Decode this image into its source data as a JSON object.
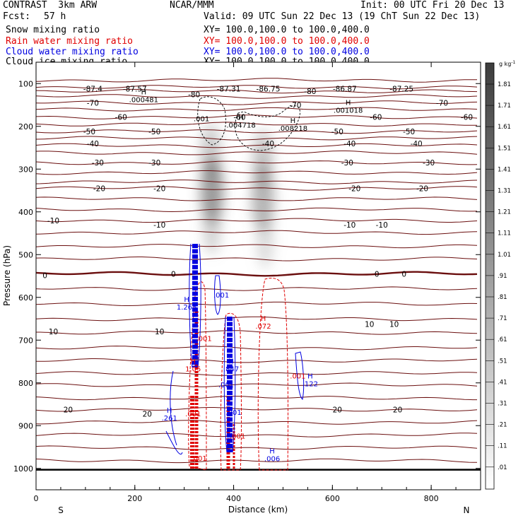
{
  "header": {
    "model": "CONTRAST  3km ARW",
    "org": "NCAR/MMM",
    "init": "Init: 00 UTC Fri 20 Dec 13",
    "fcst_label": "Fcst:",
    "fcst_value": "57 h",
    "valid": "Valid: 09 UTC Sun 22 Dec 13 (19 ChT Sun 22 Dec 13)"
  },
  "legend": [
    {
      "name": "Snow mixing ratio",
      "xy": "XY= 100.0,100.0 to 100.0,400.0",
      "color": "#000000"
    },
    {
      "name": "Rain water mixing ratio",
      "xy": "XY= 100.0,100.0 to 100.0,400.0",
      "color": "#e00000"
    },
    {
      "name": "Cloud water mixing ratio",
      "xy": "XY= 100.0,100.0 to 100.0,400.0",
      "color": "#0000e0"
    },
    {
      "name": "Cloud ice mixing ratio",
      "xy": "XY= 100.0,100.0 to 100.0,400.0",
      "color": "#000000"
    }
  ],
  "colors": {
    "isotherm": "#6b0f0f",
    "rain": "#e00000",
    "cloud_water": "#0000e0",
    "ice": "#000000"
  },
  "chart_data": {
    "type": "cross-section contour",
    "xlabel": "Distance (km)",
    "ylabel": "Pressure (hPa)",
    "xlim": [
      0,
      900
    ],
    "ylim": [
      1050,
      50
    ],
    "xticks": [
      0,
      200,
      400,
      600,
      800
    ],
    "yticks": [
      100,
      200,
      300,
      400,
      500,
      600,
      700,
      800,
      900,
      1000
    ],
    "x_end_labels": {
      "left": "S",
      "right": "N"
    },
    "colorbar": {
      "unit": "g kg",
      "unit_exp": "-1",
      "levels": [
        "1.81",
        "1.71",
        "1.61",
        "1.51",
        "1.41",
        "1.31",
        "1.21",
        "1.11",
        "1.01",
        ".91",
        ".81",
        ".71",
        ".61",
        ".51",
        ".41",
        ".31",
        ".21",
        ".11",
        ".01"
      ]
    },
    "isotherm_labels": [
      {
        "x": 115,
        "p": 112,
        "text": "-87.4"
      },
      {
        "x": 200,
        "p": 112,
        "text": "-87.57"
      },
      {
        "x": 390,
        "p": 112,
        "text": "-87.31"
      },
      {
        "x": 470,
        "p": 112,
        "text": "-86.75"
      },
      {
        "x": 625,
        "p": 112,
        "text": "-86.87"
      },
      {
        "x": 740,
        "p": 112,
        "text": "-87.25"
      },
      {
        "x": 320,
        "p": 125,
        "text": "-80"
      },
      {
        "x": 555,
        "p": 118,
        "text": "-80"
      },
      {
        "x": 115,
        "p": 145,
        "text": "-70"
      },
      {
        "x": 525,
        "p": 150,
        "text": "-70"
      },
      {
        "x": 822,
        "p": 145,
        "text": "-70"
      },
      {
        "x": 172,
        "p": 178,
        "text": "-60"
      },
      {
        "x": 412,
        "p": 178,
        "text": "-60"
      },
      {
        "x": 688,
        "p": 178,
        "text": "-60"
      },
      {
        "x": 872,
        "p": 178,
        "text": "-60"
      },
      {
        "x": 108,
        "p": 212,
        "text": "-50"
      },
      {
        "x": 240,
        "p": 212,
        "text": "-50"
      },
      {
        "x": 610,
        "p": 212,
        "text": "-50"
      },
      {
        "x": 755,
        "p": 212,
        "text": "-50"
      },
      {
        "x": 115,
        "p": 240,
        "text": "-40"
      },
      {
        "x": 470,
        "p": 240,
        "text": "-40"
      },
      {
        "x": 635,
        "p": 240,
        "text": "-40"
      },
      {
        "x": 770,
        "p": 240,
        "text": "-40"
      },
      {
        "x": 125,
        "p": 285,
        "text": "-30"
      },
      {
        "x": 240,
        "p": 285,
        "text": "-30"
      },
      {
        "x": 630,
        "p": 285,
        "text": "-30"
      },
      {
        "x": 795,
        "p": 285,
        "text": "-30"
      },
      {
        "x": 128,
        "p": 345,
        "text": "-20"
      },
      {
        "x": 250,
        "p": 345,
        "text": "-20"
      },
      {
        "x": 645,
        "p": 345,
        "text": "-20"
      },
      {
        "x": 782,
        "p": 345,
        "text": "-20"
      },
      {
        "x": 35,
        "p": 420,
        "text": "-10"
      },
      {
        "x": 250,
        "p": 430,
        "text": "-10"
      },
      {
        "x": 635,
        "p": 430,
        "text": "-10"
      },
      {
        "x": 700,
        "p": 430,
        "text": "-10"
      },
      {
        "x": 18,
        "p": 548,
        "text": "0"
      },
      {
        "x": 278,
        "p": 545,
        "text": "0"
      },
      {
        "x": 690,
        "p": 545,
        "text": "0"
      },
      {
        "x": 745,
        "p": 545,
        "text": "0"
      },
      {
        "x": 35,
        "p": 680,
        "text": "10"
      },
      {
        "x": 250,
        "p": 680,
        "text": "10"
      },
      {
        "x": 675,
        "p": 662,
        "text": "10"
      },
      {
        "x": 725,
        "p": 662,
        "text": "10"
      },
      {
        "x": 65,
        "p": 862,
        "text": "20"
      },
      {
        "x": 225,
        "p": 872,
        "text": "20"
      },
      {
        "x": 610,
        "p": 862,
        "text": "20"
      },
      {
        "x": 732,
        "p": 862,
        "text": "20"
      }
    ],
    "isotherm_levels_p": [
      92,
      108,
      118,
      130,
      145,
      160,
      178,
      195,
      212,
      228,
      245,
      262,
      285,
      308,
      330,
      345,
      370,
      395,
      420,
      448,
      480,
      510,
      545,
      580,
      615,
      650,
      682,
      718,
      748,
      778,
      805,
      835,
      862,
      892,
      922,
      952,
      982
    ],
    "maxima_labels": [
      {
        "x": 218,
        "p": 125,
        "text": "H\n.000481",
        "color": "#000000"
      },
      {
        "x": 632,
        "p": 150,
        "text": "H\n.001018",
        "color": "#000000"
      },
      {
        "x": 335,
        "p": 188,
        "text": ".001",
        "color": "#000000"
      },
      {
        "x": 415,
        "p": 185,
        "text": "H\n.004718",
        "color": "#000000"
      },
      {
        "x": 520,
        "p": 192,
        "text": "H\n.008218",
        "color": "#000000"
      },
      {
        "x": 305,
        "p": 610,
        "text": "H\n1.265",
        "color": "#0000e0"
      },
      {
        "x": 375,
        "p": 600,
        "text": ".001",
        "color": "#0000e0"
      },
      {
        "x": 460,
        "p": 655,
        "text": "H\n.072",
        "color": "#e00000"
      },
      {
        "x": 340,
        "p": 702,
        "text": ".001",
        "color": "#e00000"
      },
      {
        "x": 318,
        "p": 755,
        "text": "H\n1.05",
        "color": "#e00000"
      },
      {
        "x": 395,
        "p": 755,
        "text": "H\n.847",
        "color": "#0000e0"
      },
      {
        "x": 385,
        "p": 810,
        "text": ".001",
        "color": "#0000e0"
      },
      {
        "x": 530,
        "p": 790,
        "text": ".001",
        "color": "#e00000"
      },
      {
        "x": 555,
        "p": 790,
        "text": "H\n.122",
        "color": "#0000e0"
      },
      {
        "x": 270,
        "p": 870,
        "text": "H\n.261",
        "color": "#0000e0"
      },
      {
        "x": 318,
        "p": 878,
        "text": ".001",
        "color": "#e00000"
      },
      {
        "x": 400,
        "p": 875,
        "text": ".001",
        "color": "#0000e0"
      },
      {
        "x": 408,
        "p": 930,
        "text": ".001",
        "color": "#e00000"
      },
      {
        "x": 478,
        "p": 965,
        "text": "H\n.006",
        "color": "#0000e0"
      },
      {
        "x": 330,
        "p": 982,
        "text": ".001",
        "color": "#e00000"
      }
    ]
  }
}
